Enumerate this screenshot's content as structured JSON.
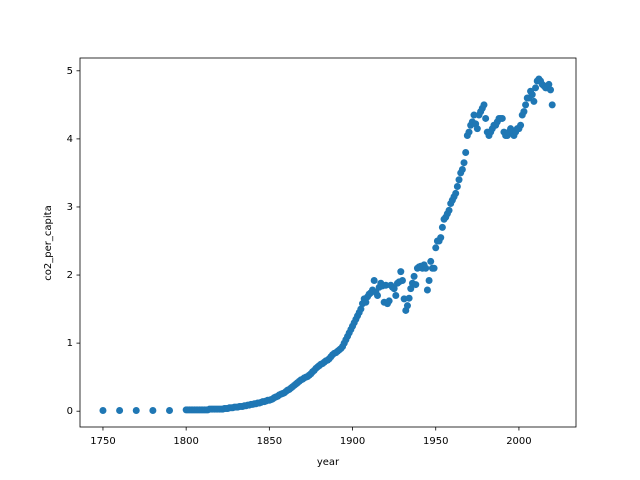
{
  "chart_data": {
    "type": "scatter",
    "xlabel": "year",
    "ylabel": "co2_per_capita",
    "color": "#1f77b4",
    "grid": false,
    "xlim": [
      1736.2,
      2034.3
    ],
    "ylim": [
      -0.232,
      5.188
    ],
    "xticks": [
      1750,
      1800,
      1850,
      1900,
      1950,
      2000
    ],
    "yticks": [
      0,
      1,
      2,
      3,
      4,
      5
    ],
    "x": [
      1750,
      1760,
      1770,
      1780,
      1790,
      1800,
      1801,
      1802,
      1803,
      1804,
      1805,
      1806,
      1807,
      1808,
      1809,
      1810,
      1811,
      1812,
      1813,
      1814,
      1815,
      1816,
      1817,
      1818,
      1819,
      1820,
      1821,
      1822,
      1823,
      1824,
      1825,
      1826,
      1827,
      1828,
      1829,
      1830,
      1831,
      1832,
      1833,
      1834,
      1835,
      1836,
      1837,
      1838,
      1839,
      1840,
      1841,
      1842,
      1843,
      1844,
      1845,
      1846,
      1847,
      1848,
      1849,
      1850,
      1851,
      1852,
      1853,
      1854,
      1855,
      1856,
      1857,
      1858,
      1859,
      1860,
      1861,
      1862,
      1863,
      1864,
      1865,
      1866,
      1867,
      1868,
      1869,
      1870,
      1871,
      1872,
      1873,
      1874,
      1875,
      1876,
      1877,
      1878,
      1879,
      1880,
      1881,
      1882,
      1883,
      1884,
      1885,
      1886,
      1887,
      1888,
      1889,
      1890,
      1891,
      1892,
      1893,
      1894,
      1895,
      1896,
      1897,
      1898,
      1899,
      1900,
      1901,
      1902,
      1903,
      1904,
      1905,
      1906,
      1907,
      1908,
      1909,
      1910,
      1911,
      1912,
      1913,
      1914,
      1915,
      1916,
      1917,
      1918,
      1919,
      1920,
      1921,
      1922,
      1923,
      1924,
      1925,
      1926,
      1927,
      1928,
      1929,
      1930,
      1931,
      1932,
      1933,
      1934,
      1935,
      1936,
      1937,
      1938,
      1939,
      1940,
      1941,
      1942,
      1943,
      1944,
      1945,
      1946,
      1947,
      1948,
      1949,
      1950,
      1951,
      1952,
      1953,
      1954,
      1955,
      1956,
      1957,
      1958,
      1959,
      1960,
      1961,
      1962,
      1963,
      1964,
      1965,
      1966,
      1967,
      1968,
      1969,
      1970,
      1971,
      1972,
      1973,
      1974,
      1975,
      1976,
      1977,
      1978,
      1979,
      1980,
      1981,
      1982,
      1983,
      1984,
      1985,
      1986,
      1987,
      1988,
      1989,
      1990,
      1991,
      1992,
      1993,
      1994,
      1995,
      1996,
      1997,
      1998,
      1999,
      2000,
      2001,
      2002,
      2003,
      2004,
      2005,
      2006,
      2007,
      2008,
      2009,
      2010,
      2011,
      2012,
      2013,
      2014,
      2015,
      2016,
      2017,
      2018,
      2019,
      2020
    ],
    "values": [
      0.01,
      0.01,
      0.01,
      0.01,
      0.01,
      0.02,
      0.02,
      0.02,
      0.02,
      0.02,
      0.02,
      0.02,
      0.02,
      0.02,
      0.02,
      0.02,
      0.02,
      0.02,
      0.02,
      0.03,
      0.03,
      0.03,
      0.03,
      0.03,
      0.03,
      0.03,
      0.03,
      0.03,
      0.04,
      0.04,
      0.04,
      0.05,
      0.05,
      0.05,
      0.06,
      0.06,
      0.06,
      0.07,
      0.07,
      0.07,
      0.08,
      0.08,
      0.09,
      0.09,
      0.1,
      0.1,
      0.11,
      0.11,
      0.12,
      0.12,
      0.13,
      0.14,
      0.14,
      0.15,
      0.16,
      0.16,
      0.17,
      0.18,
      0.2,
      0.21,
      0.22,
      0.24,
      0.25,
      0.26,
      0.27,
      0.29,
      0.31,
      0.32,
      0.34,
      0.36,
      0.38,
      0.4,
      0.42,
      0.44,
      0.46,
      0.47,
      0.49,
      0.5,
      0.51,
      0.53,
      0.55,
      0.58,
      0.6,
      0.63,
      0.65,
      0.67,
      0.69,
      0.7,
      0.72,
      0.74,
      0.75,
      0.77,
      0.8,
      0.83,
      0.85,
      0.86,
      0.88,
      0.9,
      0.92,
      0.95,
      1.0,
      1.05,
      1.1,
      1.15,
      1.2,
      1.25,
      1.3,
      1.35,
      1.4,
      1.45,
      1.5,
      1.58,
      1.65,
      1.6,
      1.68,
      1.72,
      1.74,
      1.78,
      1.92,
      1.75,
      1.7,
      1.82,
      1.88,
      1.84,
      1.6,
      1.85,
      1.58,
      1.62,
      1.85,
      1.82,
      1.8,
      1.7,
      1.88,
      1.9,
      2.05,
      1.92,
      1.65,
      1.48,
      1.55,
      1.66,
      1.8,
      1.88,
      1.98,
      1.86,
      2.1,
      2.12,
      2.13,
      2.1,
      2.15,
      2.1,
      1.78,
      1.92,
      2.2,
      2.1,
      2.1,
      2.4,
      2.5,
      2.5,
      2.55,
      2.7,
      2.82,
      2.85,
      2.9,
      2.95,
      3.05,
      3.1,
      3.15,
      3.2,
      3.3,
      3.4,
      3.5,
      3.55,
      3.65,
      3.8,
      4.05,
      4.1,
      4.2,
      4.25,
      4.35,
      4.22,
      4.15,
      4.35,
      4.4,
      4.45,
      4.5,
      4.3,
      4.1,
      4.05,
      4.1,
      4.15,
      4.2,
      4.2,
      4.25,
      4.3,
      4.3,
      4.3,
      4.1,
      4.05,
      4.05,
      4.1,
      4.15,
      4.1,
      4.05,
      4.1,
      4.15,
      4.15,
      4.2,
      4.35,
      4.4,
      4.5,
      4.6,
      4.6,
      4.7,
      4.65,
      4.55,
      4.75,
      4.85,
      4.88,
      4.85,
      4.8,
      4.78,
      4.75,
      4.75,
      4.8,
      4.72,
      4.5
    ]
  }
}
